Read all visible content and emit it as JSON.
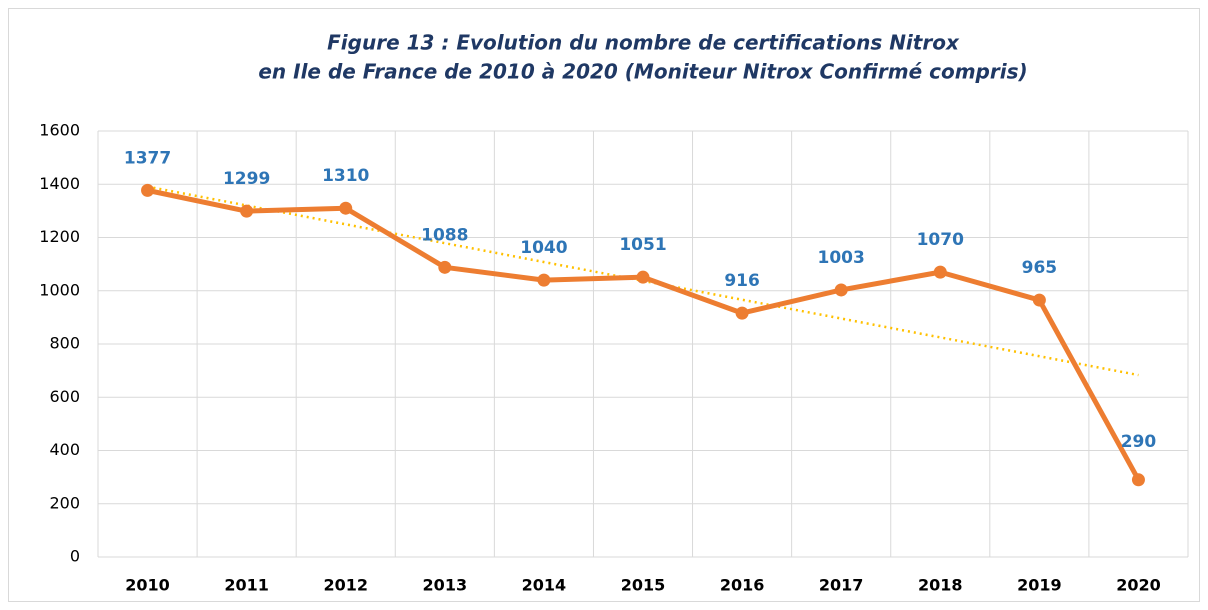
{
  "chart_data": {
    "type": "line",
    "title": [
      "Figure 13 : Evolution du nombre de certifications Nitrox",
      "en Ile de France de 2010 à 2020 (Moniteur Nitrox Confirmé compris)"
    ],
    "categories": [
      "2010",
      "2011",
      "2012",
      "2013",
      "2014",
      "2015",
      "2016",
      "2017",
      "2018",
      "2019",
      "2020"
    ],
    "values": [
      1377,
      1299,
      1310,
      1088,
      1040,
      1051,
      916,
      1003,
      1070,
      965,
      290
    ],
    "color": "#ed7d31",
    "trendline": true,
    "trendline_color": "#ffc000",
    "ylim": [
      0,
      1600
    ],
    "yticks": [
      0,
      200,
      400,
      600,
      800,
      1000,
      1200,
      1400,
      1600
    ],
    "grid": true
  }
}
